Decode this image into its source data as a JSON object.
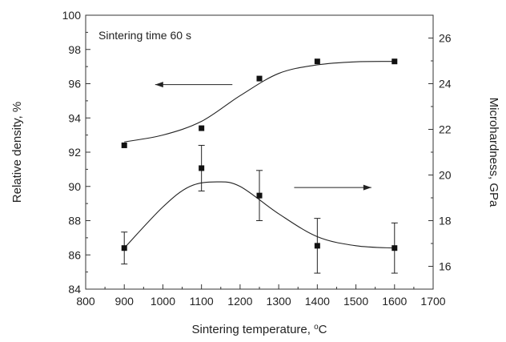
{
  "chart_data": {
    "type": "scatter",
    "annotation": "Sintering time 60 s",
    "xlabel_main": "Sintering temperature, ",
    "xlabel_sup": "o",
    "xlabel_unit": "C",
    "ylabel_left": "Relative density, %",
    "ylabel_right": "Microhardness, GPa",
    "x_ticks": [
      "800",
      "900",
      "1000",
      "1100",
      "1200",
      "1300",
      "1400",
      "1500",
      "1600",
      "1700"
    ],
    "y_left_ticks": [
      "84",
      "86",
      "88",
      "90",
      "92",
      "94",
      "96",
      "98",
      "100"
    ],
    "y_right_ticks": [
      "16",
      "18",
      "20",
      "22",
      "24",
      "26"
    ],
    "xlim": [
      800,
      1700
    ],
    "ylim_left": [
      84,
      100
    ],
    "ylim_right": [
      15,
      27
    ],
    "series": [
      {
        "axis": "left",
        "x": [
          900,
          1100,
          1250,
          1400,
          1600
        ],
        "y": [
          92.4,
          93.4,
          96.3,
          97.3,
          97.3
        ],
        "fit": [
          [
            900,
            92.6
          ],
          [
            1000,
            93.0
          ],
          [
            1100,
            93.8
          ],
          [
            1200,
            95.3
          ],
          [
            1300,
            96.6
          ],
          [
            1400,
            97.1
          ],
          [
            1500,
            97.28
          ],
          [
            1600,
            97.3
          ]
        ],
        "arrow": {
          "from": [
            1180,
            95.95
          ],
          "to": [
            980,
            95.95
          ]
        }
      },
      {
        "axis": "right",
        "x": [
          900,
          1100,
          1250,
          1400,
          1600
        ],
        "y": [
          16.8,
          20.3,
          19.1,
          16.9,
          16.8
        ],
        "err": [
          0.7,
          1.0,
          1.1,
          1.2,
          1.1
        ],
        "fit": [
          [
            900,
            16.8
          ],
          [
            1000,
            18.6
          ],
          [
            1070,
            19.5
          ],
          [
            1140,
            19.7
          ],
          [
            1200,
            19.5
          ],
          [
            1300,
            18.3
          ],
          [
            1400,
            17.3
          ],
          [
            1500,
            16.9
          ],
          [
            1600,
            16.8
          ]
        ],
        "arrow": {
          "from": [
            1340,
            19.45
          ],
          "to": [
            1540,
            19.45
          ]
        }
      }
    ],
    "colors": {
      "marker": "#111111",
      "line": "#222222",
      "axis": "#333333"
    }
  }
}
